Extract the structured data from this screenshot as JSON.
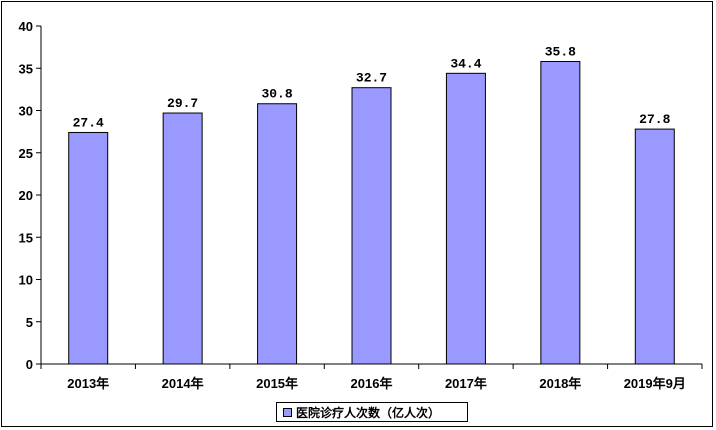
{
  "chart_data": {
    "type": "bar",
    "categories": [
      "2013年",
      "2014年",
      "2015年",
      "2016年",
      "2017年",
      "2018年",
      "2019年9月"
    ],
    "series": [
      {
        "name": "医院诊疗人次数（亿人次）",
        "values": [
          27.4,
          29.7,
          30.8,
          32.7,
          34.4,
          35.8,
          27.8
        ],
        "data_labels": [
          "27.4",
          "29.7",
          "30.8",
          "32.7",
          "34.4",
          "35.8",
          "27.8"
        ]
      }
    ],
    "ylim": [
      0,
      40
    ],
    "yticks": [
      0,
      5,
      10,
      15,
      20,
      25,
      30,
      35,
      40
    ],
    "grid": false,
    "legend_position": "bottom",
    "colors": {
      "bar": "#9999ff",
      "bar_border": "#000000",
      "axis": "#000000"
    }
  }
}
